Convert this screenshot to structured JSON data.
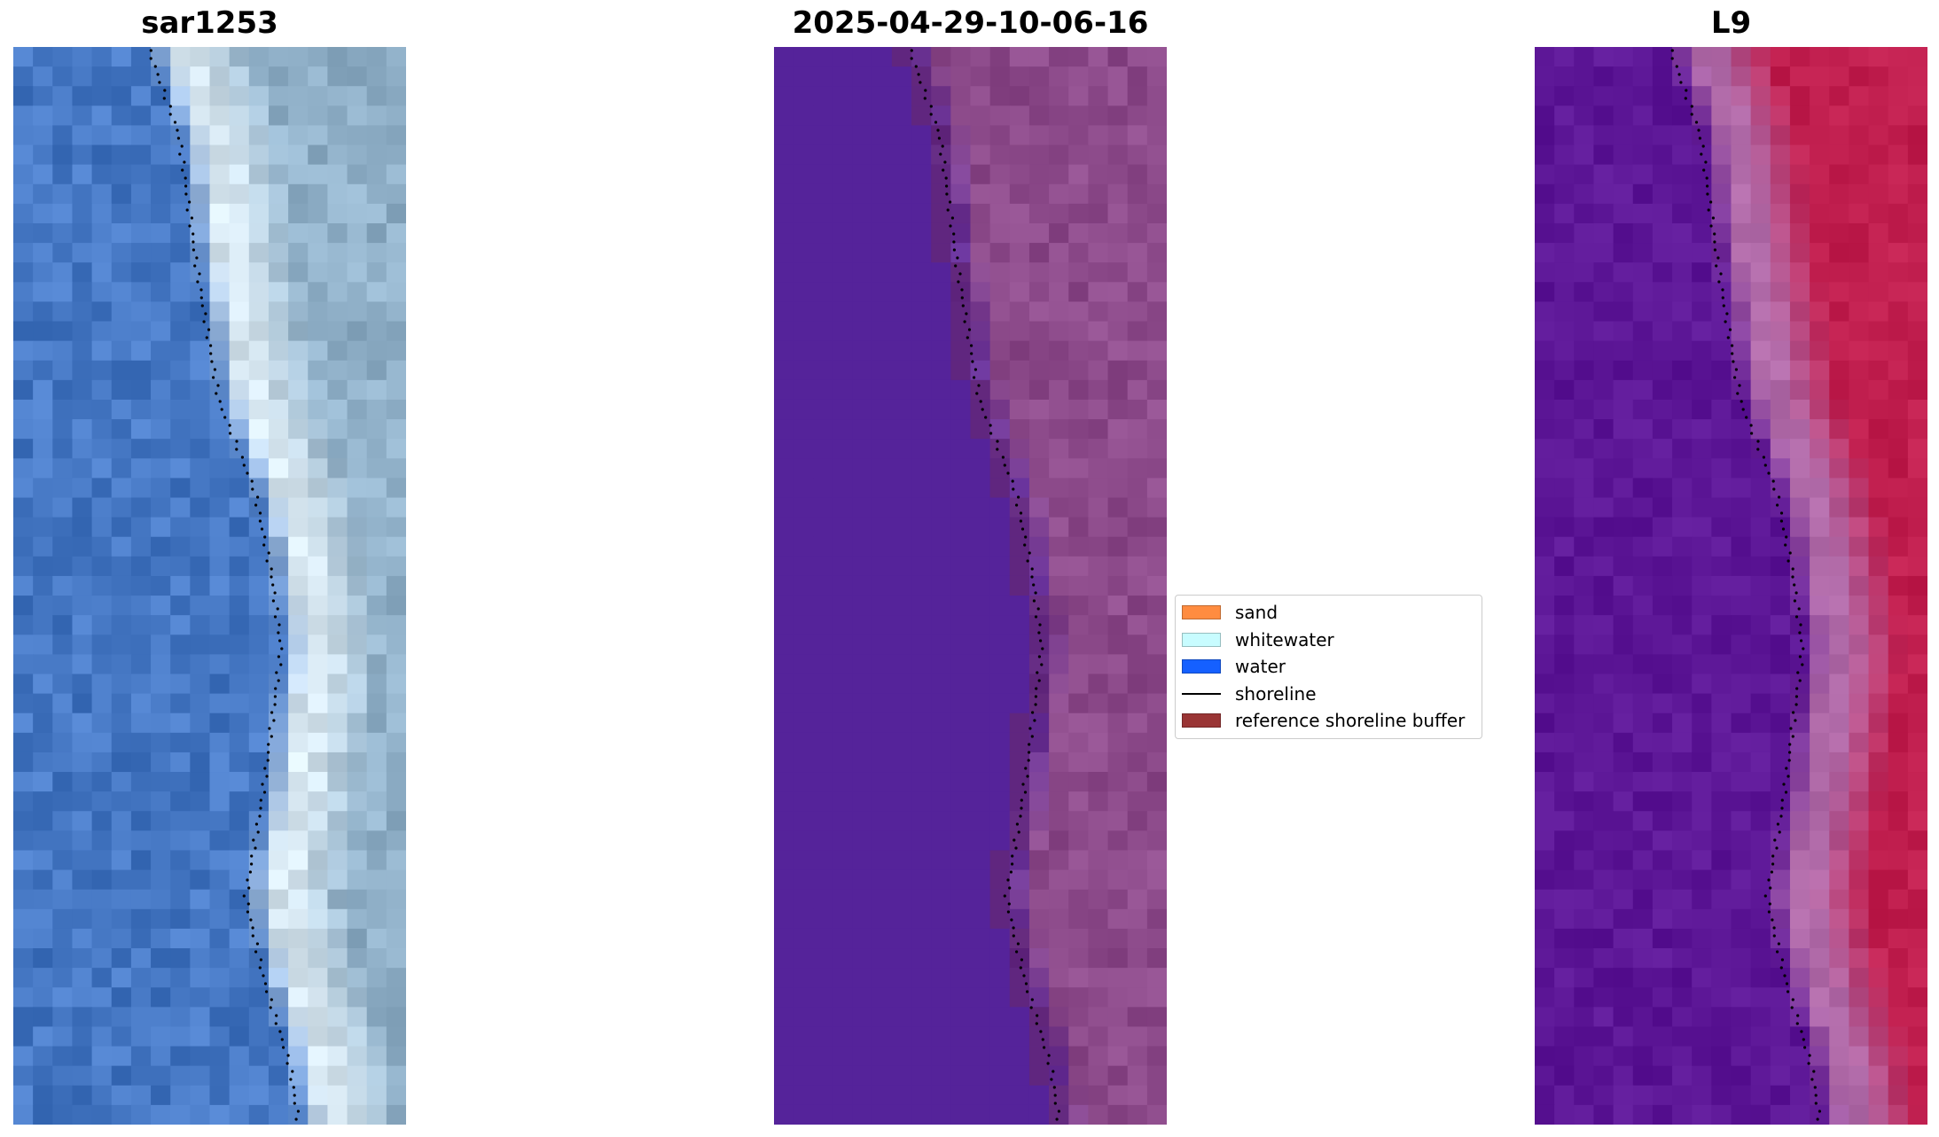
{
  "panels": [
    {
      "title": "sar1253",
      "icon": "rgb-satellite-image"
    },
    {
      "title": "2025-04-29-10-06-16",
      "icon": "classified-image"
    },
    {
      "title": "L9",
      "icon": "water-index-image"
    }
  ],
  "legend": {
    "items": [
      {
        "label": "sand",
        "color": "#ff8c40",
        "kind": "patch"
      },
      {
        "label": "whitewater",
        "color": "#c8fcff",
        "kind": "patch"
      },
      {
        "label": "water",
        "color": "#1560ff",
        "kind": "patch"
      },
      {
        "label": "shoreline",
        "color": "#000000",
        "kind": "line"
      },
      {
        "label": "reference shoreline buffer",
        "color": "#9a3535",
        "kind": "patch"
      }
    ]
  },
  "colors": {
    "rgb_water": "#4678c4",
    "rgb_surf": "#d8e8f2",
    "rgb_land": "#90b0c8",
    "class_water": "#55239a",
    "class_land": "#8c4a8a",
    "class_buffer": "#6a2a6a",
    "index_water": "#5c1696",
    "index_land": "#c01e4e",
    "shoreline": "#000000"
  }
}
